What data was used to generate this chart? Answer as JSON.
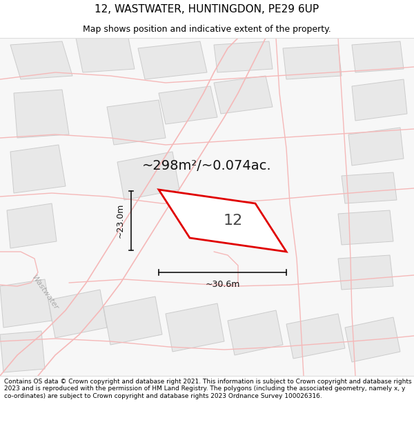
{
  "title": "12, WASTWATER, HUNTINGDON, PE29 6UP",
  "subtitle": "Map shows position and indicative extent of the property.",
  "footer": "Contains OS data © Crown copyright and database right 2021. This information is subject to Crown copyright and database rights 2023 and is reproduced with the permission of HM Land Registry. The polygons (including the associated geometry, namely x, y co-ordinates) are subject to Crown copyright and database rights 2023 Ordnance Survey 100026316.",
  "area_label": "~298m²/~0.074ac.",
  "width_label": "~30.6m",
  "height_label": "~23.0m",
  "property_number": "12",
  "map_bg": "#f7f7f7",
  "plot_fill": "#ffffff",
  "plot_edge": "#e00000",
  "bld_fill": "#e8e8e8",
  "bld_edge": "#cccccc",
  "road_color": "#f5b8b8",
  "dim_color": "#111111",
  "title_fontsize": 11,
  "subtitle_fontsize": 9,
  "footer_fontsize": 6.5,
  "area_fontsize": 14,
  "num_fontsize": 16,
  "dim_fontsize": 9
}
